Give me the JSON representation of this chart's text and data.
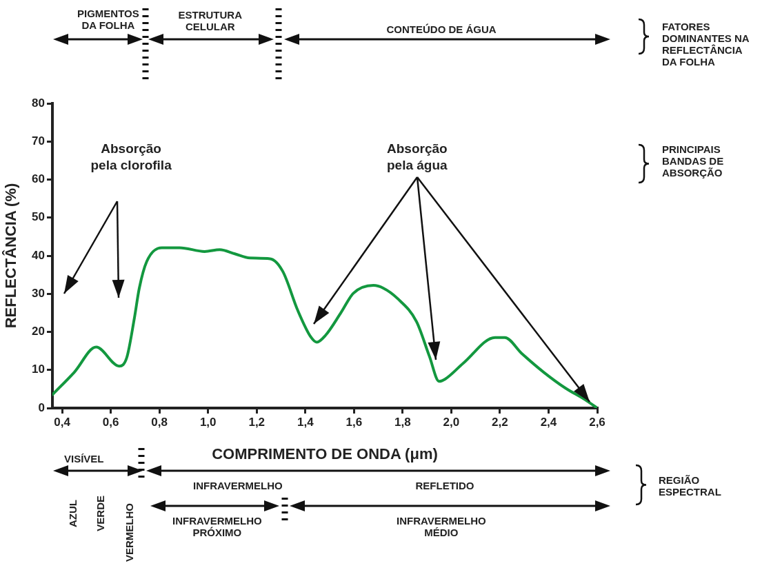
{
  "chart_data": {
    "type": "line",
    "xlabel": "COMPRIMENTO DE ONDA (μm)",
    "ylabel": "REFLECTÂNCIA (%)",
    "x": [
      0.36,
      0.45,
      0.54,
      0.635,
      0.666,
      0.697,
      0.717,
      0.748,
      0.81,
      0.883,
      0.986,
      1.048,
      1.11,
      1.172,
      1.255,
      1.307,
      1.369,
      1.421,
      1.447,
      1.483,
      1.545,
      1.597,
      1.68,
      1.72,
      1.78,
      1.857,
      1.91,
      1.95,
      1.975,
      2.05,
      2.18,
      2.22,
      2.29,
      2.38,
      2.47,
      2.55,
      2.6
    ],
    "series": [
      {
        "color": "#13983f",
        "values": [
          3.5,
          9.4,
          16,
          11,
          13.3,
          23.6,
          31.4,
          38.5,
          42.1,
          42.1,
          41.1,
          41.6,
          40.5,
          39.4,
          39.2,
          35.9,
          25.6,
          18.8,
          17.3,
          19.1,
          24.9,
          30.1,
          32.2,
          31.5,
          28.7,
          22.7,
          13.6,
          7,
          7.6,
          11.8,
          18.5,
          18.5,
          14.3,
          9.4,
          5.2,
          2.2,
          0
        ]
      }
    ],
    "xlim": [
      0.36,
      2.6
    ],
    "ylim": [
      0,
      80
    ],
    "xticks": [
      {
        "value": 0.4,
        "label": "0,4"
      },
      {
        "value": 0.6,
        "label": "0,6"
      },
      {
        "value": 0.8,
        "label": "0,8"
      },
      {
        "value": 1.0,
        "label": "1,0"
      },
      {
        "value": 1.2,
        "label": "1,2"
      },
      {
        "value": 1.4,
        "label": "1,4"
      },
      {
        "value": 1.6,
        "label": "1,6"
      },
      {
        "value": 1.8,
        "label": "1,8"
      },
      {
        "value": 2.0,
        "label": "2,0"
      },
      {
        "value": 2.2,
        "label": "2,2"
      },
      {
        "value": 2.4,
        "label": "2,4"
      },
      {
        "value": 2.6,
        "label": "2,6"
      }
    ],
    "yticks": [
      0,
      10,
      20,
      30,
      40,
      50,
      60,
      70,
      80
    ],
    "grid": false,
    "legend": false,
    "marker": "none",
    "line_style": "solid",
    "annotations": [
      "PIGMENTOS\nDA FOLHA",
      "ESTRUTURA\nCELULAR",
      "CONTEÚDO DE ÁGUA",
      "FATORES\nDOMINANTES NA\nREFLECTÂNCIA\nDA FOLHA",
      "PRINCIPAIS\nBANDAS DE\nABSORÇÃO",
      "Absorção\npela clorofila",
      "Absorção\npela água",
      "VISÍVEL",
      "INFRAVERMELHO",
      "REFLETIDO",
      "REGIÃO\nESPECTRAL",
      "AZUL",
      "VERDE",
      "VERMELHO",
      "INFRAVERMELHO\nPRÓXIMO",
      "INFRAVERMELHO\nMÉDIO"
    ]
  }
}
